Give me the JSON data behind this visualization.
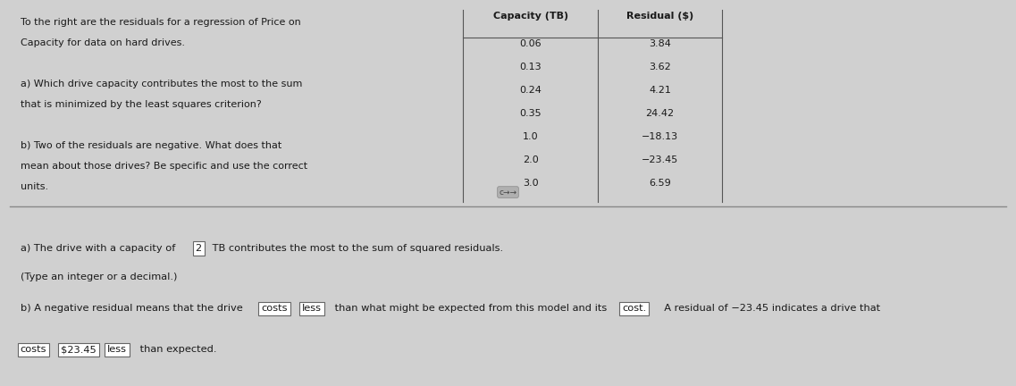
{
  "bg_color": "#d0d0d0",
  "top_panel_bg": "#c8c8c8",
  "bottom_panel_bg": "#cccccc",
  "top_left_text_lines": [
    "To the right are the residuals for a regression of Price on",
    "Capacity for data on hard drives.",
    "",
    "a) Which drive capacity contributes the most to the sum",
    "that is minimized by the least squares criterion?",
    "",
    "b) Two of the residuals are negative. What does that",
    "mean about those drives? Be specific and use the correct",
    "units."
  ],
  "table_header": [
    "Capacity (TB)",
    "Residual ($)"
  ],
  "table_data": [
    [
      "0.06",
      "3.84"
    ],
    [
      "0.13",
      "3.62"
    ],
    [
      "0.24",
      "4.21"
    ],
    [
      "0.35",
      "24.42"
    ],
    [
      "1.0",
      "−18.13"
    ],
    [
      "2.0",
      "−23.45"
    ],
    [
      "3.0",
      "6.59"
    ]
  ],
  "answer_a_prefix": "a) The drive with a capacity of ",
  "answer_a_box": "2",
  "answer_a_suffix": " TB contributes the most to the sum of squared residuals.",
  "answer_a_line2": "(Type an integer or a decimal.)",
  "answer_b_prefix": "b) A negative residual means that the drive ",
  "answer_b_box1": "costs",
  "answer_b_box2": "less",
  "answer_b_suffix1": " than what might be expected from this model and its ",
  "answer_b_box3": "cost.",
  "answer_b_suffix2": "  A residual of −23.45 indicates a drive that",
  "answer_b_line2_box1": "costs",
  "answer_b_line2_val": "$23.45",
  "answer_b_line2_box2": "less",
  "answer_b_line2_end": " than expected.",
  "text_color": "#1a1a1a",
  "table_line_color": "#555555"
}
